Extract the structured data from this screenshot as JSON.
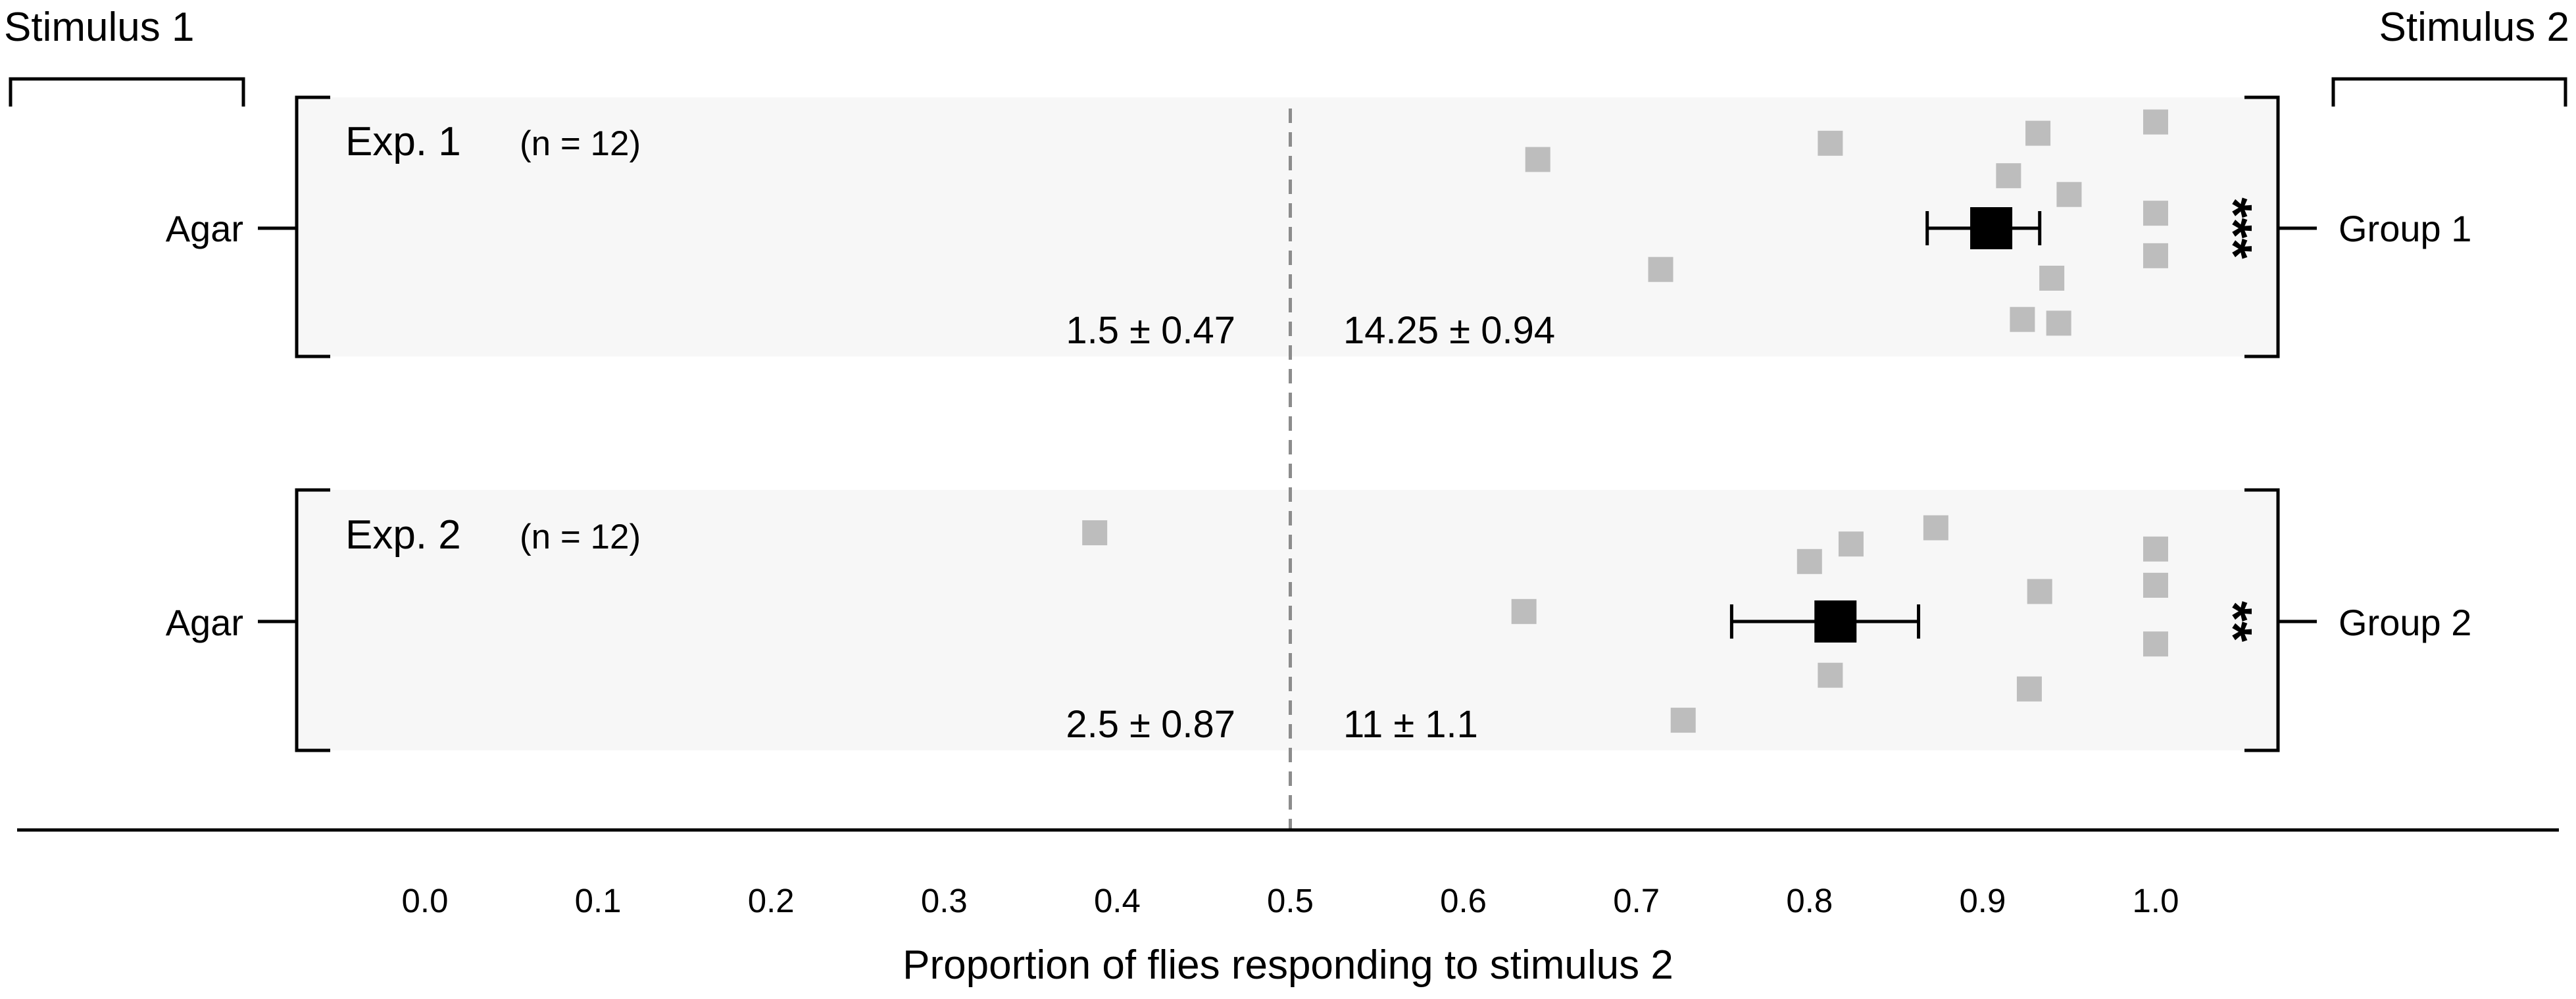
{
  "chart_data": {
    "type": "scatter",
    "xlabel": "Proportion of flies responding to stimulus 2",
    "x_ticks": [
      "0.0",
      "0.1",
      "0.2",
      "0.3",
      "0.4",
      "0.5",
      "0.6",
      "0.7",
      "0.8",
      "0.9",
      "1.0"
    ],
    "xlim": [
      0.0,
      1.0
    ],
    "reference_line": 0.5,
    "left_header": "Stimulus 1",
    "right_header": "Stimulus 2",
    "colors": {
      "points": "#bdbdbd",
      "mean": "#000000",
      "band": "#f7f7f7",
      "reference_line": "#8c8c8c"
    },
    "experiments": [
      {
        "title": "Exp. 1",
        "n_label": "(n = 12)",
        "left_label": "Agar",
        "right_label": "Group 1",
        "left_stat": "1.5 ± 0.47",
        "right_stat": "14.25 ± 0.94",
        "significance": "***",
        "mean": 0.905,
        "error": [
          0.868,
          0.933
        ],
        "points": [
          {
            "x": 0.643,
            "jitter": -0.55
          },
          {
            "x": 0.812,
            "jitter": -0.68
          },
          {
            "x": 0.932,
            "jitter": -0.76
          },
          {
            "x": 1.0,
            "jitter": -0.85
          },
          {
            "x": 0.915,
            "jitter": -0.42
          },
          {
            "x": 0.95,
            "jitter": -0.27
          },
          {
            "x": 1.0,
            "jitter": -0.12
          },
          {
            "x": 1.0,
            "jitter": 0.22
          },
          {
            "x": 0.714,
            "jitter": 0.33
          },
          {
            "x": 0.94,
            "jitter": 0.4
          },
          {
            "x": 0.923,
            "jitter": 0.73
          },
          {
            "x": 0.944,
            "jitter": 0.76
          }
        ]
      },
      {
        "title": "Exp. 2",
        "n_label": "(n = 12)",
        "left_label": "Agar",
        "right_label": "Group 2",
        "left_stat": "2.5 ± 0.87",
        "right_stat": "11 ± 1.1",
        "significance": "**",
        "mean": 0.815,
        "error": [
          0.755,
          0.863
        ],
        "points": [
          {
            "x": 0.387,
            "jitter": -0.71
          },
          {
            "x": 0.873,
            "jitter": -0.75
          },
          {
            "x": 0.824,
            "jitter": -0.62
          },
          {
            "x": 1.0,
            "jitter": -0.58
          },
          {
            "x": 0.8,
            "jitter": -0.48
          },
          {
            "x": 1.0,
            "jitter": -0.29
          },
          {
            "x": 0.933,
            "jitter": -0.24
          },
          {
            "x": 0.635,
            "jitter": -0.08
          },
          {
            "x": 1.0,
            "jitter": 0.18
          },
          {
            "x": 0.812,
            "jitter": 0.43
          },
          {
            "x": 0.927,
            "jitter": 0.54
          },
          {
            "x": 0.727,
            "jitter": 0.79
          }
        ]
      }
    ]
  }
}
